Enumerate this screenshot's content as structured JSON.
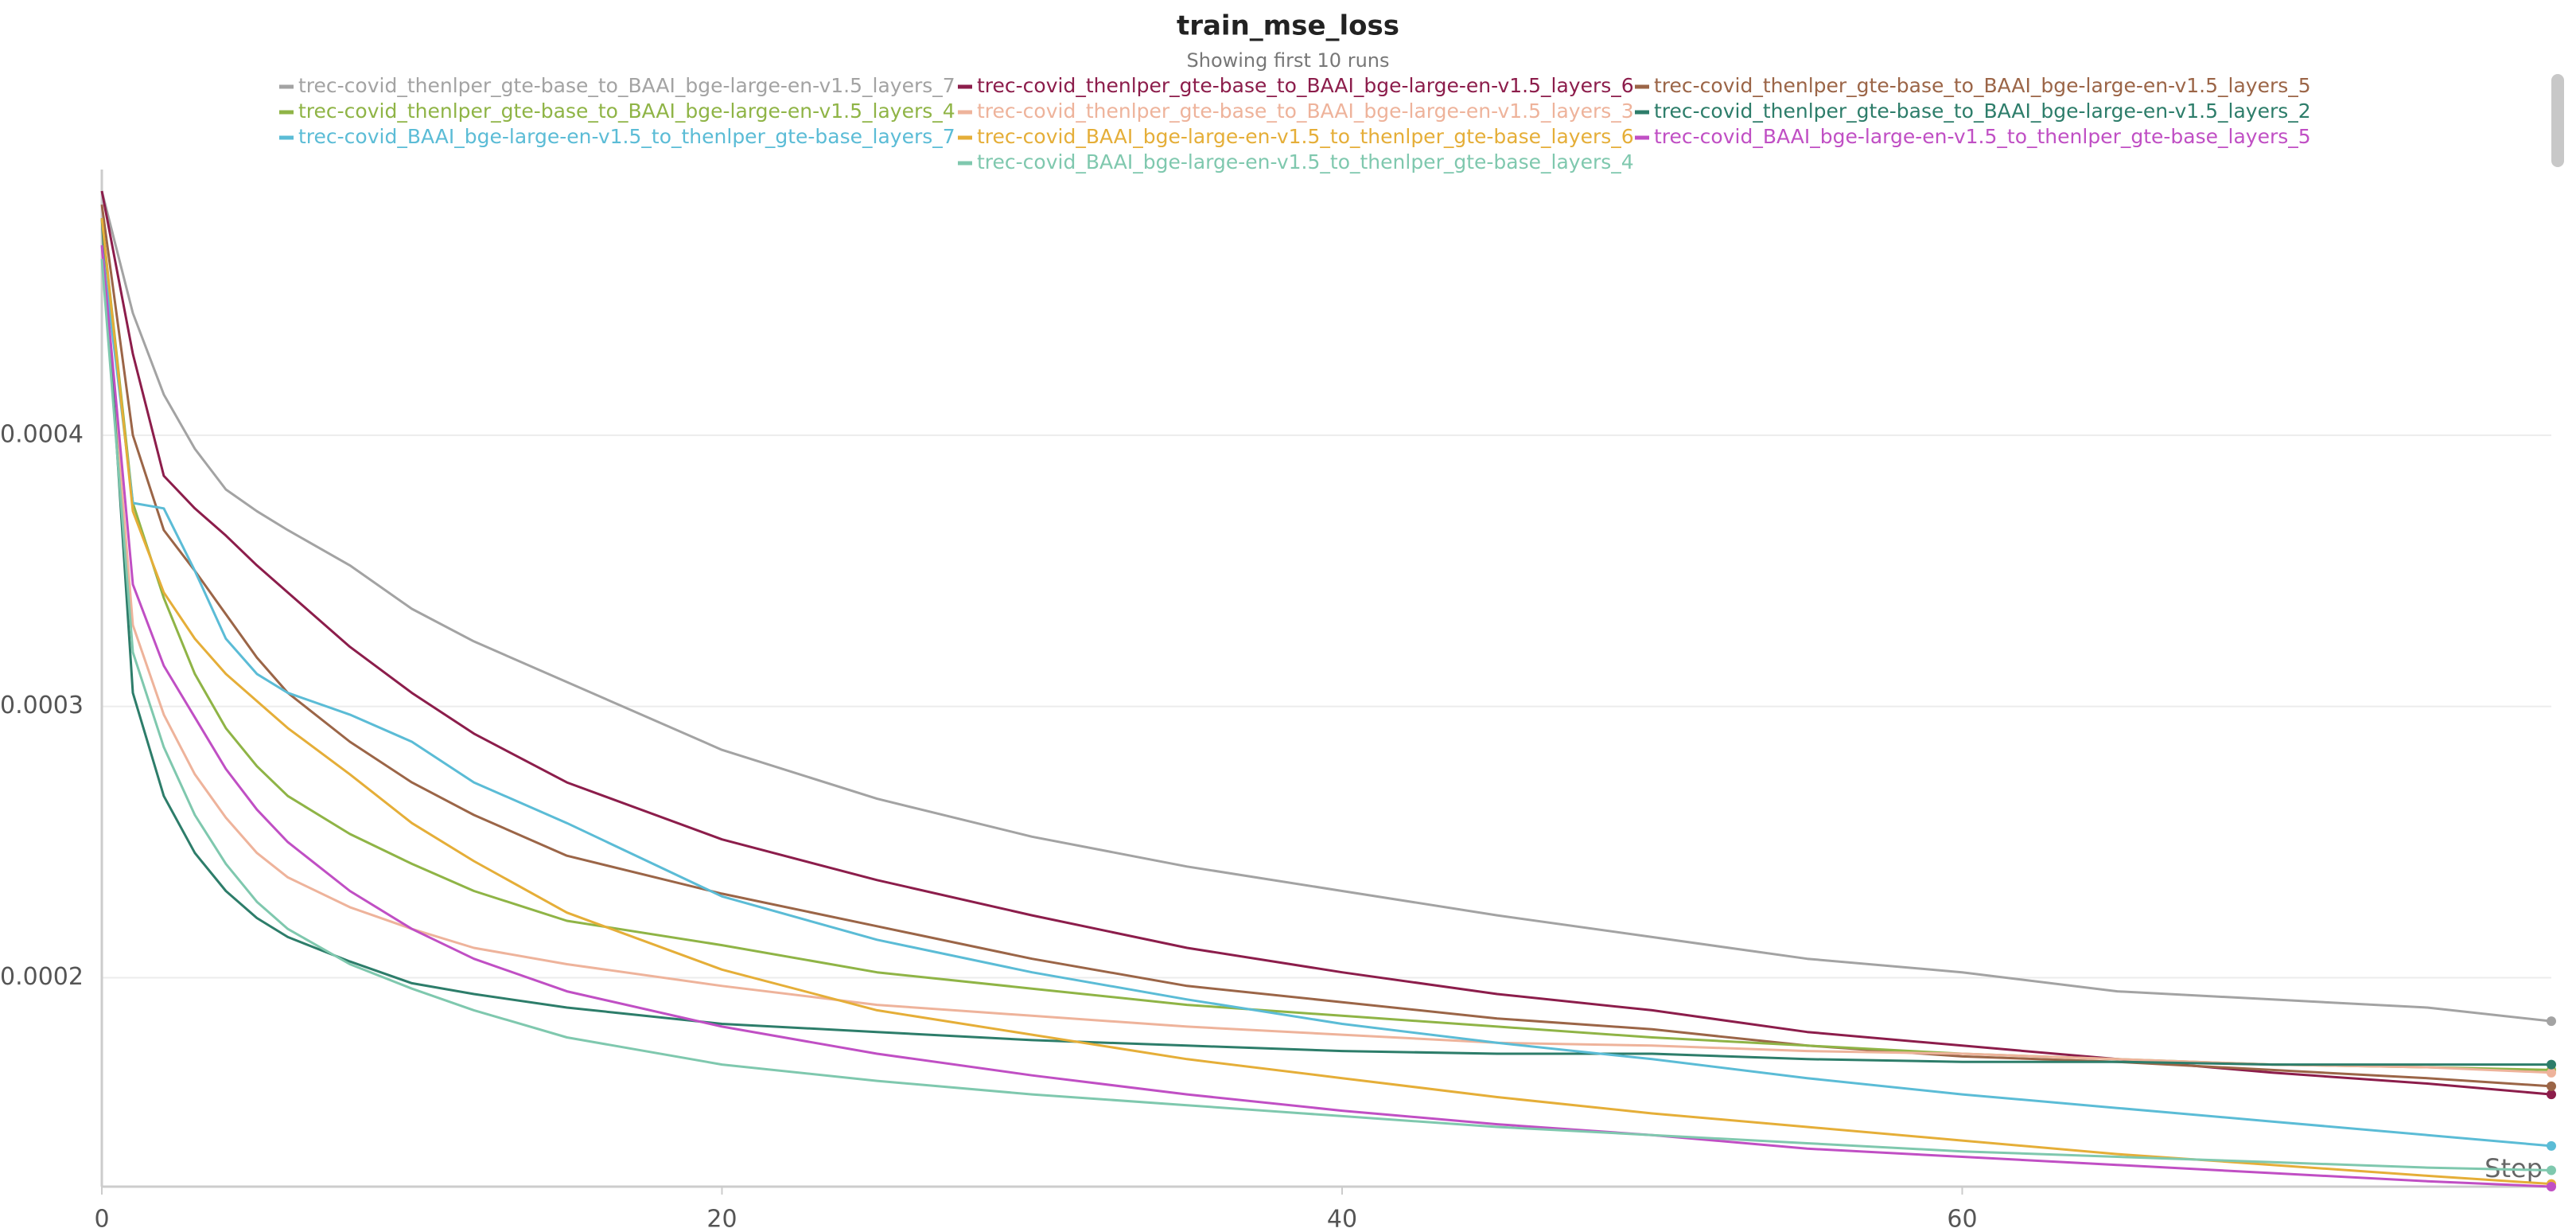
{
  "chart_data": {
    "type": "line",
    "title": "train_mse_loss",
    "subtitle": "Showing first 10 runs",
    "x_label": "Step",
    "x": [
      0,
      1,
      2,
      3,
      4,
      5,
      6,
      8,
      10,
      12,
      15,
      20,
      25,
      30,
      35,
      40,
      45,
      50,
      55,
      60,
      65,
      70,
      75,
      79
    ],
    "xlim": [
      0,
      79
    ],
    "xticks": [
      0,
      20,
      40,
      60
    ],
    "ylim": [
      0.000123,
      0.000495
    ],
    "yticks": [
      0.0002,
      0.0003,
      0.0004
    ],
    "grid": true,
    "series": [
      {
        "name": "trec-covid_thenlper_gte-base_to_BAAI_bge-large-en-v1.5_layers_7",
        "color": "#a3a3a3",
        "values": [
          0.00049,
          0.000445,
          0.000415,
          0.000395,
          0.00038,
          0.000372,
          0.000365,
          0.000352,
          0.000336,
          0.000324,
          0.000309,
          0.000284,
          0.000266,
          0.000252,
          0.000241,
          0.000232,
          0.000223,
          0.000215,
          0.000207,
          0.000202,
          0.000195,
          0.000192,
          0.000189,
          0.000184
        ]
      },
      {
        "name": "trec-covid_thenlper_gte-base_to_BAAI_bge-large-en-v1.5_layers_6",
        "color": "#8c1d4b",
        "values": [
          0.00049,
          0.00043,
          0.000385,
          0.000373,
          0.000363,
          0.000352,
          0.000342,
          0.000322,
          0.000305,
          0.00029,
          0.000272,
          0.000251,
          0.000236,
          0.000223,
          0.000211,
          0.000202,
          0.000194,
          0.000188,
          0.00018,
          0.000175,
          0.00017,
          0.000165,
          0.000161,
          0.000157
        ]
      },
      {
        "name": "trec-covid_thenlper_gte-base_to_BAAI_bge-large-en-v1.5_layers_5",
        "color": "#9b6547",
        "values": [
          0.000485,
          0.0004,
          0.000365,
          0.00035,
          0.000334,
          0.000318,
          0.000305,
          0.000287,
          0.000272,
          0.00026,
          0.000245,
          0.000231,
          0.000219,
          0.000207,
          0.000197,
          0.000191,
          0.000185,
          0.000181,
          0.000175,
          0.000171,
          0.000169,
          0.000166,
          0.000163,
          0.00016
        ]
      },
      {
        "name": "trec-covid_thenlper_gte-base_to_BAAI_bge-large-en-v1.5_layers_4",
        "color": "#8fb446",
        "values": [
          0.00048,
          0.000375,
          0.00034,
          0.000312,
          0.000292,
          0.000278,
          0.000267,
          0.000253,
          0.000242,
          0.000232,
          0.000221,
          0.000212,
          0.000202,
          0.000196,
          0.00019,
          0.000186,
          0.000182,
          0.000178,
          0.000175,
          0.000172,
          0.00017,
          0.000168,
          0.000167,
          0.000166
        ]
      },
      {
        "name": "trec-covid_thenlper_gte-base_to_BAAI_bge-large-en-v1.5_layers_3",
        "color": "#eeb39b",
        "values": [
          0.00047,
          0.00033,
          0.000297,
          0.000275,
          0.000259,
          0.000246,
          0.000237,
          0.000226,
          0.000218,
          0.000211,
          0.000205,
          0.000197,
          0.00019,
          0.000186,
          0.000182,
          0.000179,
          0.000176,
          0.000175,
          0.000173,
          0.000172,
          0.00017,
          0.000168,
          0.000167,
          0.000165
        ]
      },
      {
        "name": "trec-covid_thenlper_gte-base_to_BAAI_bge-large-en-v1.5_layers_2",
        "color": "#2d7d6a",
        "values": [
          0.00048,
          0.000305,
          0.000267,
          0.000246,
          0.000232,
          0.000222,
          0.000215,
          0.000206,
          0.000198,
          0.000194,
          0.000189,
          0.000183,
          0.00018,
          0.000177,
          0.000175,
          0.000173,
          0.000172,
          0.000172,
          0.00017,
          0.000169,
          0.000169,
          0.000168,
          0.000168,
          0.000168
        ]
      },
      {
        "name": "trec-covid_BAAI_bge-large-en-v1.5_to_thenlper_gte-base_layers_7",
        "color": "#5bbcd6",
        "values": [
          0.00047,
          0.000375,
          0.000373,
          0.00035,
          0.000325,
          0.000312,
          0.000305,
          0.000297,
          0.000287,
          0.000272,
          0.000257,
          0.00023,
          0.000214,
          0.000202,
          0.000192,
          0.000183,
          0.000176,
          0.00017,
          0.000163,
          0.000157,
          0.000152,
          0.000147,
          0.000142,
          0.000138
        ]
      },
      {
        "name": "trec-covid_BAAI_bge-large-en-v1.5_to_thenlper_gte-base_layers_6",
        "color": "#e5ae38",
        "values": [
          0.00048,
          0.000372,
          0.000342,
          0.000325,
          0.000312,
          0.000302,
          0.000292,
          0.000275,
          0.000257,
          0.000243,
          0.000224,
          0.000203,
          0.000188,
          0.000179,
          0.00017,
          0.000163,
          0.000156,
          0.00015,
          0.000145,
          0.00014,
          0.000135,
          0.000131,
          0.000127,
          0.000124
        ]
      },
      {
        "name": "trec-covid_BAAI_bge-large-en-v1.5_to_thenlper_gte-base_layers_5",
        "color": "#c04fc4",
        "values": [
          0.00047,
          0.000345,
          0.000315,
          0.000296,
          0.000277,
          0.000262,
          0.00025,
          0.000232,
          0.000218,
          0.000207,
          0.000195,
          0.000182,
          0.000172,
          0.000164,
          0.000157,
          0.000151,
          0.000146,
          0.000142,
          0.000137,
          0.000134,
          0.000131,
          0.000128,
          0.000125,
          0.000123
        ]
      },
      {
        "name": "trec-covid_BAAI_bge-large-en-v1.5_to_thenlper_gte-base_layers_4",
        "color": "#7fc8ae",
        "values": [
          0.000465,
          0.00032,
          0.000285,
          0.00026,
          0.000242,
          0.000228,
          0.000218,
          0.000205,
          0.000196,
          0.000188,
          0.000178,
          0.000168,
          0.000162,
          0.000157,
          0.000153,
          0.000149,
          0.000145,
          0.000142,
          0.000139,
          0.000136,
          0.000134,
          0.000132,
          0.00013,
          0.000129
        ]
      }
    ]
  }
}
